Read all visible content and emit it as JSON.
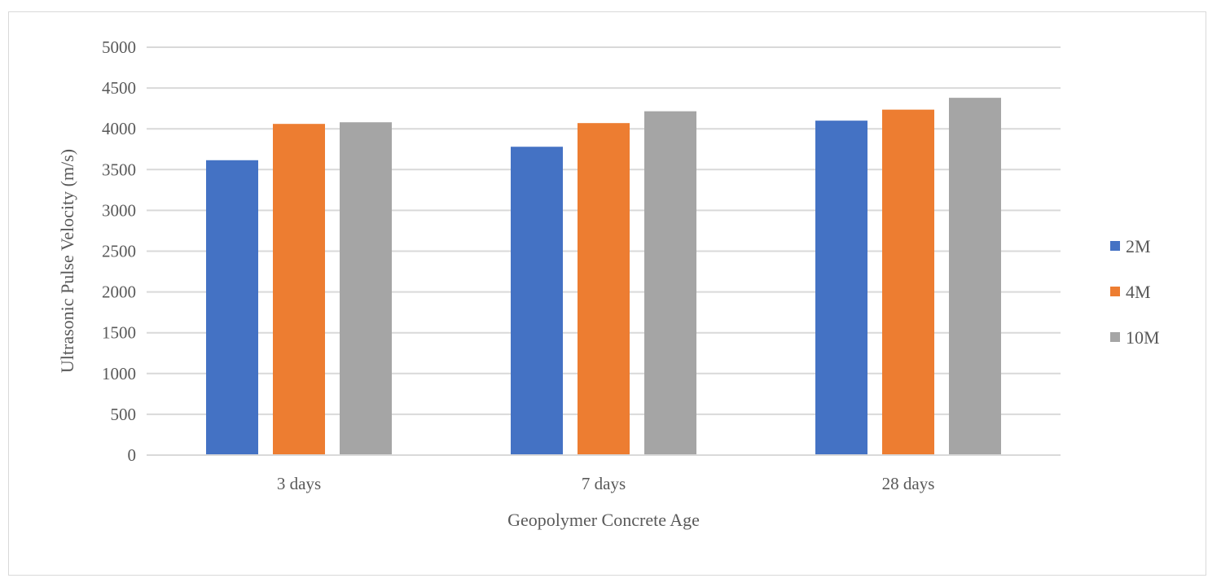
{
  "chart_data": {
    "type": "bar",
    "title": "",
    "xlabel": "Geopolymer Concrete Age",
    "ylabel": "Ultrasonic Pulse Velocity (m/s)",
    "categories": [
      "3 days",
      "7 days",
      "28 days"
    ],
    "series": [
      {
        "name": "2M",
        "color": "#4472c4",
        "values": [
          3615,
          3780,
          4100
        ]
      },
      {
        "name": "4M",
        "color": "#ed7d31",
        "values": [
          4060,
          4070,
          4235
        ]
      },
      {
        "name": "10M",
        "color": "#a5a5a5",
        "values": [
          4080,
          4215,
          4380
        ]
      }
    ],
    "ylim": [
      0,
      5000
    ],
    "yticks": [
      0,
      500,
      1000,
      1500,
      2000,
      2500,
      3000,
      3500,
      4000,
      4500,
      5000
    ],
    "grid": "horizontal",
    "legend_position": "right"
  }
}
